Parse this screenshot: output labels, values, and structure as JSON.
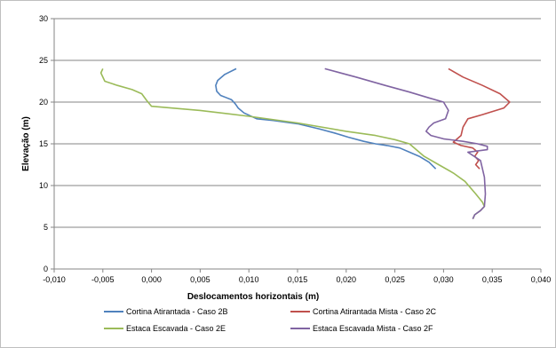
{
  "chart_data": {
    "type": "line",
    "xlabel": "Deslocamentos horizontais (m)",
    "ylabel": "Elevação (m)",
    "xlim": [
      -0.01,
      0.04
    ],
    "ylim": [
      0,
      30
    ],
    "x_ticks": [
      "-0,010",
      "-0,005",
      "0,000",
      "0,005",
      "0,010",
      "0,015",
      "0,020",
      "0,025",
      "0,030",
      "0,035",
      "0,040"
    ],
    "y_ticks": [
      "0",
      "5",
      "10",
      "15",
      "20",
      "25",
      "30"
    ],
    "grid": "horizontal",
    "legend_position": "bottom",
    "series": [
      {
        "name": "Cortina Atirantada - Caso 2B",
        "color": "#4f81bd",
        "x": [
          0.0087,
          0.0075,
          0.0068,
          0.0066,
          0.0067,
          0.0071,
          0.0082,
          0.0086,
          0.0089,
          0.0095,
          0.0108,
          0.0125,
          0.015,
          0.0172,
          0.0188,
          0.0202,
          0.0218,
          0.023,
          0.0242,
          0.0255,
          0.0265,
          0.0275,
          0.0285,
          0.0292
        ],
        "y": [
          24.0,
          23.3,
          22.6,
          22.0,
          21.3,
          20.8,
          20.3,
          19.8,
          19.3,
          18.7,
          18.0,
          17.8,
          17.4,
          16.8,
          16.3,
          15.8,
          15.3,
          15.0,
          14.8,
          14.5,
          14.0,
          13.5,
          12.8,
          12.0
        ]
      },
      {
        "name": "Cortina Atirantada Mista - Caso 2C",
        "color": "#c0504d",
        "x": [
          0.0305,
          0.032,
          0.034,
          0.0358,
          0.0368,
          0.0362,
          0.034,
          0.0325,
          0.032,
          0.0318,
          0.031,
          0.0318,
          0.033,
          0.0335,
          0.0332,
          0.0336,
          0.0333,
          0.0337
        ],
        "y": [
          24.0,
          23.0,
          22.0,
          21.0,
          20.0,
          19.3,
          18.5,
          18.0,
          17.0,
          16.0,
          15.2,
          14.8,
          14.5,
          14.0,
          13.5,
          13.0,
          12.5,
          12.0
        ]
      },
      {
        "name": "Estaca Escavada - Caso 2E",
        "color": "#9bbb59",
        "x": [
          -0.005,
          -0.0052,
          -0.0048,
          -0.0035,
          -0.002,
          -0.001,
          -0.0005,
          0.0,
          0.005,
          0.01,
          0.015,
          0.02,
          0.023,
          0.025,
          0.0265,
          0.028,
          0.0295,
          0.031,
          0.0322,
          0.0333,
          0.034,
          0.0342,
          0.0338,
          0.0332,
          0.033
        ],
        "y": [
          24.0,
          23.5,
          22.5,
          22.0,
          21.5,
          21.0,
          20.2,
          19.5,
          19.0,
          18.3,
          17.5,
          16.5,
          16.0,
          15.5,
          15.0,
          13.5,
          12.5,
          11.5,
          10.5,
          9.0,
          8.0,
          7.5,
          7.0,
          6.5,
          6.0
        ]
      },
      {
        "name": "Estaca Escavada Mista - Caso 2F",
        "color": "#8064a2",
        "x": [
          0.0178,
          0.021,
          0.024,
          0.0265,
          0.0285,
          0.03,
          0.0305,
          0.0302,
          0.029,
          0.0285,
          0.0282,
          0.0287,
          0.03,
          0.032,
          0.0335,
          0.0345,
          0.0345,
          0.0325,
          0.0338,
          0.034,
          0.0342,
          0.0343,
          0.0342,
          0.0338,
          0.0332,
          0.033
        ],
        "y": [
          24.0,
          23.0,
          22.0,
          21.2,
          20.5,
          20.0,
          19.0,
          18.0,
          17.5,
          17.0,
          16.5,
          16.0,
          15.6,
          15.3,
          15.0,
          14.7,
          14.3,
          14.0,
          13.0,
          12.0,
          11.0,
          9.0,
          7.5,
          7.0,
          6.5,
          6.0
        ]
      }
    ]
  }
}
